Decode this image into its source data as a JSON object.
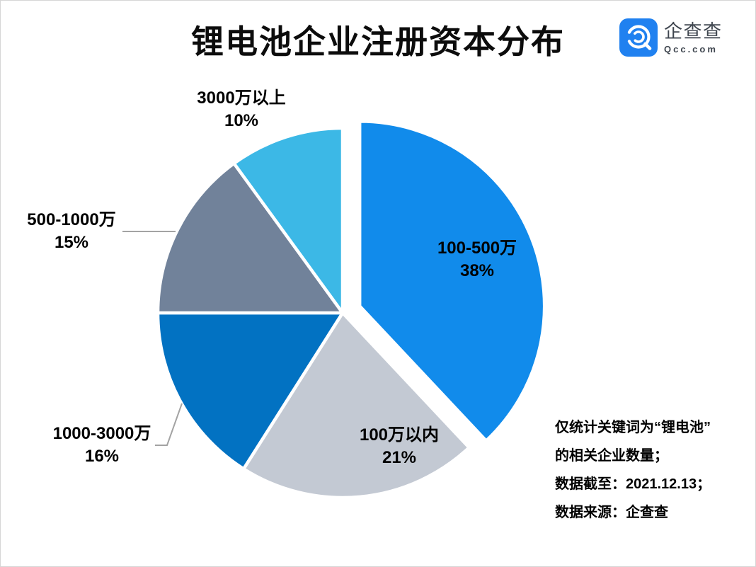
{
  "title": "锂电池企业注册资本分布",
  "logo": {
    "name": "企查查",
    "domain": "Qcc.com",
    "brand_color": "#2081F0",
    "icon": "qcc-q-spiral-icon"
  },
  "chart_data": {
    "type": "pie",
    "title": "锂电池企业注册资本分布",
    "unit": "percent",
    "start_angle_deg": 0,
    "direction": "clockwise",
    "legend": "none",
    "slices": [
      {
        "label": "100-500万",
        "value": 38,
        "pct_label": "38%",
        "color": "#118BEB",
        "exploded": true,
        "label_placement": "inside"
      },
      {
        "label": "100万以内",
        "value": 21,
        "pct_label": "21%",
        "color": "#C3C9D3",
        "exploded": false,
        "label_placement": "inside"
      },
      {
        "label": "1000-3000万",
        "value": 16,
        "pct_label": "16%",
        "color": "#0272C2",
        "exploded": false,
        "label_placement": "outside-leader"
      },
      {
        "label": "500-1000万",
        "value": 15,
        "pct_label": "15%",
        "color": "#71829A",
        "exploded": false,
        "label_placement": "outside-leader"
      },
      {
        "label": "3000万以上",
        "value": 10,
        "pct_label": "10%",
        "color": "#3CB8E6",
        "exploded": false,
        "label_placement": "outside"
      }
    ]
  },
  "notes": {
    "line1": "仅统计关键词为“锂电池”",
    "line2": "的相关企业数量；",
    "line3": "数据截至：2021.12.13；",
    "line4": "数据来源：企查查"
  },
  "colors": {
    "leader_line": "#A3A3A3",
    "text": "#000000",
    "background": "#FFFFFF"
  }
}
